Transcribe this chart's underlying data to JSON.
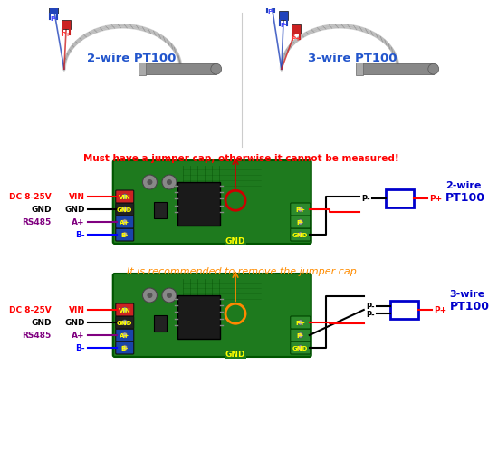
{
  "bg_color": "#ffffff",
  "diagram1": {
    "note": "It is recommended to remove the jumper cap",
    "note_color": "#ff8c00",
    "sensor_label1": "3-wire",
    "sensor_label2": "PT100",
    "circle_color": "#ff8800",
    "wires": [
      {
        "label": "GND",
        "color": "#000000"
      },
      {
        "label": "P-",
        "color": "#000000"
      },
      {
        "label": "P-",
        "color": "#000000"
      },
      {
        "label": "P+",
        "color": "#ff0000"
      }
    ]
  },
  "diagram2": {
    "note": "Must have a jumper cap, otherwise it cannot be measured!",
    "note_color": "#ff0000",
    "sensor_label1": "2-wire",
    "sensor_label2": "PT100",
    "circle_color": "#cc0000",
    "wires": [
      {
        "label": "GND",
        "color": "#000000"
      },
      {
        "label": "P-",
        "color": "#000000"
      },
      {
        "label": "P+",
        "color": "#ff0000"
      }
    ]
  },
  "left_labels": [
    {
      "prefix": "",
      "prefix_color": "#000000",
      "text": "B-",
      "text_color": "#0000ff"
    },
    {
      "prefix": "RS485",
      "prefix_color": "#800080",
      "text": "A+",
      "text_color": "#800080"
    },
    {
      "prefix": "GND",
      "prefix_color": "#000000",
      "text": "GND",
      "text_color": "#000000"
    },
    {
      "prefix": "DC 8-25V",
      "prefix_color": "#ff0000",
      "text": "VIN",
      "text_color": "#ff0000"
    }
  ],
  "board_color": "#1e7a1e",
  "board_edge": "#005500",
  "terminal_left_colors": [
    "#1a44aa",
    "#1a44aa",
    "#222222",
    "#cc2222"
  ],
  "terminal_right_color": "#2a7a2a",
  "gnd_label_color": "#ffff00",
  "wire_label_color": "#ffff00",
  "bottom_left_label": "2-wire PT100",
  "bottom_right_label": "3-wire PT100",
  "bottom_label_color": "#2255cc"
}
